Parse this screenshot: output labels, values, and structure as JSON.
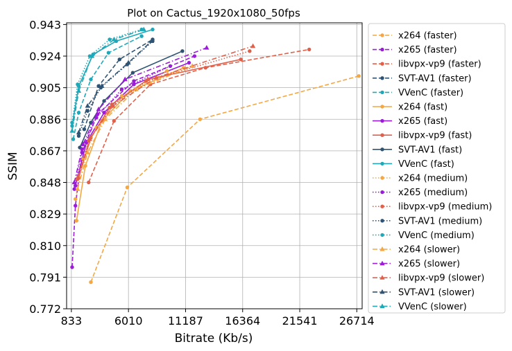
{
  "chart_data": {
    "type": "line",
    "title": "Plot on Cactus_1920x1080_50fps",
    "xlabel": "Bitrate (Kb/s)",
    "ylabel": "SSIM",
    "xlim": [
      400,
      27200
    ],
    "ylim": [
      0.772,
      0.944
    ],
    "xticks": [
      "833",
      "6010",
      "11187",
      "16364",
      "21541",
      "26714"
    ],
    "yticks": [
      "0.772",
      "0.791",
      "0.810",
      "0.829",
      "0.848",
      "0.867",
      "0.886",
      "0.905",
      "0.924",
      "0.943"
    ],
    "grid": true,
    "legend_placement": "outside-right",
    "series": [
      {
        "name": "x264 (faster)",
        "color": "#f4a742",
        "dash": "dashed",
        "marker": "circle",
        "x": [
          2600,
          5900,
          12500,
          26900
        ],
        "y": [
          0.788,
          0.845,
          0.886,
          0.912
        ]
      },
      {
        "name": "x265 (faster)",
        "color": "#9b1bd8",
        "dash": "dashed",
        "marker": "circle",
        "x": [
          900,
          1200,
          1800,
          3200,
          6500,
          12000
        ],
        "y": [
          0.797,
          0.834,
          0.866,
          0.889,
          0.909,
          0.924
        ]
      },
      {
        "name": "libvpx-vp9 (faster)",
        "color": "#e0604a",
        "dash": "dashed",
        "marker": "circle",
        "x": [
          2400,
          4700,
          8000,
          13000,
          22400
        ],
        "y": [
          0.848,
          0.885,
          0.907,
          0.917,
          0.928
        ]
      },
      {
        "name": "SVT-AV1 (faster)",
        "color": "#2f5373",
        "dash": "dashed",
        "marker": "circle",
        "x": [
          2000,
          3300,
          5200,
          8200
        ],
        "y": [
          0.88,
          0.906,
          0.922,
          0.934
        ]
      },
      {
        "name": "VVenC (faster)",
        "color": "#1fa8b8",
        "dash": "dashed",
        "marker": "circle",
        "x": [
          1000,
          1500,
          2600,
          4200,
          7200
        ],
        "y": [
          0.874,
          0.89,
          0.91,
          0.926,
          0.936
        ]
      },
      {
        "name": "x264 (fast)",
        "color": "#f4a742",
        "dash": "solid",
        "marker": "circle",
        "x": [
          1300,
          2100,
          3600,
          6200,
          11000
        ],
        "y": [
          0.825,
          0.858,
          0.885,
          0.903,
          0.917
        ]
      },
      {
        "name": "x265 (fast)",
        "color": "#9b1bd8",
        "dash": "solid",
        "marker": "circle",
        "x": [
          1200,
          2200,
          3800,
          6500,
          11500
        ],
        "y": [
          0.846,
          0.872,
          0.89,
          0.907,
          0.92
        ]
      },
      {
        "name": "libvpx-vp9 (fast)",
        "color": "#e0604a",
        "dash": "solid",
        "marker": "circle",
        "x": [
          1500,
          2600,
          4500,
          7800,
          16200
        ],
        "y": [
          0.851,
          0.875,
          0.895,
          0.91,
          0.922
        ]
      },
      {
        "name": "SVT-AV1 (fast)",
        "color": "#2f5373",
        "dash": "solid",
        "marker": "circle",
        "x": [
          1600,
          2600,
          3800,
          6400,
          10900
        ],
        "y": [
          0.869,
          0.884,
          0.897,
          0.914,
          0.927
        ]
      },
      {
        "name": "VVenC (fast)",
        "color": "#1fa8b8",
        "dash": "solid",
        "marker": "circle",
        "x": [
          900,
          1500,
          2800,
          4900,
          8200
        ],
        "y": [
          0.882,
          0.906,
          0.925,
          0.933,
          0.94
        ]
      },
      {
        "name": "x264 (medium)",
        "color": "#f4a742",
        "dash": "dotted",
        "marker": "circle",
        "x": [
          1200,
          1900,
          3100,
          5400,
          9500
        ],
        "y": [
          0.838,
          0.862,
          0.881,
          0.9,
          0.915
        ]
      },
      {
        "name": "x265 (medium)",
        "color": "#9b1bd8",
        "dash": "dotted",
        "marker": "circle",
        "x": [
          1100,
          1800,
          3100,
          5400,
          9800
        ],
        "y": [
          0.844,
          0.868,
          0.887,
          0.904,
          0.918
        ]
      },
      {
        "name": "libvpx-vp9 (medium)",
        "color": "#e0604a",
        "dash": "dotted",
        "marker": "circle",
        "x": [
          1400,
          2400,
          4300,
          7600,
          17000
        ],
        "y": [
          0.85,
          0.873,
          0.893,
          0.909,
          0.927
        ]
      },
      {
        "name": "SVT-AV1 (medium)",
        "color": "#2f5373",
        "dash": "dotted",
        "marker": "circle",
        "x": [
          1500,
          2300,
          3500,
          5900,
          8200
        ],
        "y": [
          0.876,
          0.891,
          0.905,
          0.919,
          0.933
        ]
      },
      {
        "name": "VVenC (medium)",
        "color": "#1fa8b8",
        "dash": "dotted",
        "marker": "circle",
        "x": [
          900,
          1400,
          2500,
          4300,
          7200
        ],
        "y": [
          0.884,
          0.907,
          0.924,
          0.934,
          0.94
        ]
      },
      {
        "name": "x264 (slower)",
        "color": "#f4a742",
        "dash": "dashdot",
        "marker": "triangle",
        "x": [
          1400,
          2300,
          3900,
          6700,
          11800
        ],
        "y": [
          0.844,
          0.866,
          0.886,
          0.904,
          0.918
        ]
      },
      {
        "name": "x265 (slower)",
        "color": "#9b1bd8",
        "dash": "dashdot",
        "marker": "triangle",
        "x": [
          1100,
          1900,
          3300,
          5700,
          13100
        ],
        "y": [
          0.848,
          0.871,
          0.892,
          0.91,
          0.929
        ]
      },
      {
        "name": "libvpx-vp9 (slower)",
        "color": "#e0604a",
        "dash": "dashdot",
        "marker": "triangle",
        "x": [
          1400,
          2500,
          4600,
          8500,
          17300
        ],
        "y": [
          0.851,
          0.874,
          0.894,
          0.911,
          0.93
        ]
      },
      {
        "name": "SVT-AV1 (slower)",
        "color": "#2f5373",
        "dash": "dashdot",
        "marker": "triangle",
        "x": [
          1500,
          2300,
          3600,
          6000,
          8100
        ],
        "y": [
          0.878,
          0.894,
          0.906,
          0.92,
          0.933
        ]
      },
      {
        "name": "VVenC (slower)",
        "color": "#1fa8b8",
        "dash": "dashdot",
        "marker": "triangle",
        "x": [
          900,
          1500,
          2700,
          4700,
          7400
        ],
        "y": [
          0.879,
          0.903,
          0.924,
          0.934,
          0.94
        ]
      }
    ]
  }
}
